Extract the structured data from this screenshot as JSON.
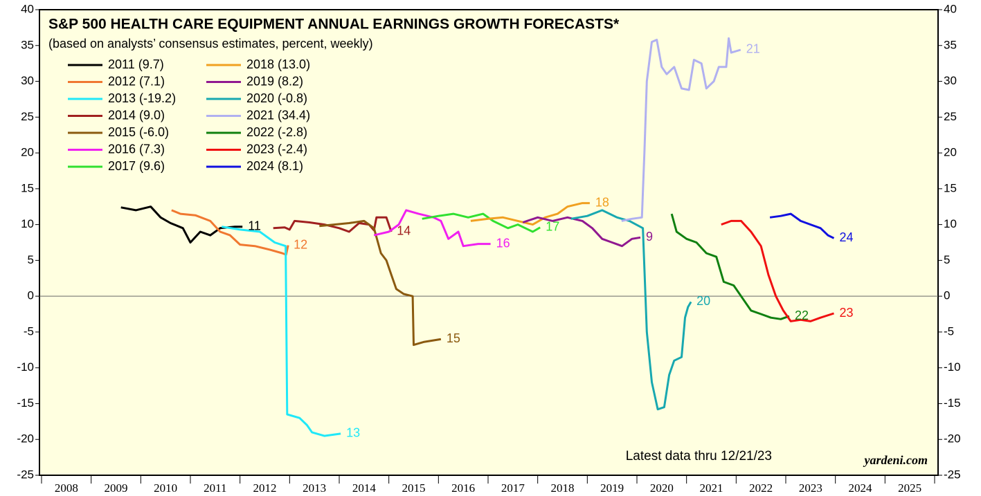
{
  "chart_data": {
    "type": "line",
    "title": "S&P 500 HEALTH CARE EQUIPMENT ANNUAL EARNINGS GROWTH FORECASTS*",
    "subtitle": "(based on analysts’ consensus estimates, percent, weekly)",
    "note": "Latest data thru 12/21/23",
    "source": "yardeni.com",
    "background": "#ffffe0",
    "xlim": [
      2008,
      2026
    ],
    "xticks": [
      2008,
      2009,
      2010,
      2011,
      2012,
      2013,
      2014,
      2015,
      2016,
      2017,
      2018,
      2019,
      2020,
      2021,
      2022,
      2023,
      2024,
      2025,
      2026
    ],
    "year_labels": [
      "2008",
      "2009",
      "2010",
      "2011",
      "2012",
      "2013",
      "2014",
      "2015",
      "2016",
      "2017",
      "2018",
      "2019",
      "2020",
      "2021",
      "2022",
      "2023",
      "2024",
      "2025"
    ],
    "ylim": [
      -25,
      40
    ],
    "yticks": [
      -25,
      -20,
      -15,
      -10,
      -5,
      0,
      5,
      10,
      15,
      20,
      25,
      30,
      35,
      40
    ],
    "series": [
      {
        "name": "2011 (9.7)",
        "end_label": "11",
        "color": "#000000",
        "x": [
          2009.6,
          2009.9,
          2010.2,
          2010.4,
          2010.6,
          2010.85,
          2011.0,
          2011.2,
          2011.4,
          2011.6,
          2011.9,
          2012.05
        ],
        "values": [
          12.4,
          12.0,
          12.5,
          11.0,
          10.2,
          9.5,
          7.5,
          9.0,
          8.5,
          9.5,
          9.7,
          9.7
        ]
      },
      {
        "name": "2012 (7.1)",
        "end_label": "12",
        "color": "#f07830",
        "x": [
          2010.62,
          2010.8,
          2011.1,
          2011.4,
          2011.6,
          2011.8,
          2012.0,
          2012.3,
          2012.6,
          2012.85,
          2012.93,
          2012.97
        ],
        "values": [
          12.0,
          11.5,
          11.3,
          10.5,
          9.0,
          8.5,
          7.2,
          7.0,
          6.5,
          6.0,
          5.8,
          7.1
        ]
      },
      {
        "name": "2013 (-19.2)",
        "end_label": "13",
        "color": "#20e8f8",
        "x": [
          2011.63,
          2012.0,
          2012.4,
          2012.7,
          2012.92,
          2012.95,
          2013.2,
          2013.35,
          2013.45,
          2013.7,
          2014.03
        ],
        "values": [
          9.7,
          9.3,
          9.0,
          7.5,
          7.0,
          -16.5,
          -17.0,
          -18.0,
          -19.0,
          -19.5,
          -19.2
        ]
      },
      {
        "name": "2014 (9.0)",
        "end_label": "14",
        "color": "#a02020",
        "x": [
          2012.67,
          2012.9,
          2013.0,
          2013.1,
          2013.4,
          2013.7,
          2014.0,
          2014.2,
          2014.4,
          2014.6,
          2014.7,
          2014.75,
          2014.95,
          2015.05
        ],
        "values": [
          9.5,
          9.6,
          9.3,
          10.5,
          10.3,
          10.0,
          9.5,
          9.0,
          10.2,
          10.0,
          9.2,
          11.0,
          11.0,
          9.0
        ]
      },
      {
        "name": "2015 (-6.0)",
        "end_label": "15",
        "color": "#8b5a10",
        "x": [
          2013.6,
          2013.9,
          2014.2,
          2014.5,
          2014.7,
          2014.84,
          2014.95,
          2015.05,
          2015.15,
          2015.3,
          2015.48,
          2015.5,
          2015.7,
          2016.05
        ],
        "values": [
          9.8,
          10.0,
          10.2,
          10.5,
          9.5,
          6.0,
          5.0,
          3.0,
          1.0,
          0.3,
          0.0,
          -6.8,
          -6.4,
          -6.0
        ]
      },
      {
        "name": "2016 (7.3)",
        "end_label": "16",
        "color": "#f020f0",
        "x": [
          2014.7,
          2015.0,
          2015.2,
          2015.35,
          2015.6,
          2015.9,
          2016.05,
          2016.2,
          2016.4,
          2016.5,
          2016.8,
          2017.05
        ],
        "values": [
          8.5,
          9.0,
          10.0,
          12.0,
          11.5,
          11.0,
          10.5,
          8.0,
          9.0,
          7.0,
          7.3,
          7.3
        ]
      },
      {
        "name": "2017 (9.6)",
        "end_label": "17",
        "color": "#30e030",
        "x": [
          2015.67,
          2016.0,
          2016.3,
          2016.6,
          2016.9,
          2017.1,
          2017.4,
          2017.6,
          2017.9,
          2018.05
        ],
        "values": [
          10.8,
          11.2,
          11.5,
          11.0,
          11.5,
          10.5,
          9.5,
          10.0,
          9.0,
          9.6
        ]
      },
      {
        "name": "2018 (13.0)",
        "end_label": "18",
        "color": "#f0a020",
        "x": [
          2016.65,
          2017.0,
          2017.3,
          2017.6,
          2017.9,
          2018.15,
          2018.4,
          2018.6,
          2018.9,
          2019.05
        ],
        "values": [
          10.5,
          10.8,
          11.0,
          10.5,
          10.0,
          11.0,
          11.5,
          12.5,
          13.0,
          13.0
        ]
      },
      {
        "name": "2019 (8.2)",
        "end_label": "9",
        "color": "#901890",
        "x": [
          2017.7,
          2018.0,
          2018.3,
          2018.6,
          2018.9,
          2019.1,
          2019.3,
          2019.5,
          2019.7,
          2019.9,
          2020.07
        ],
        "values": [
          10.3,
          11.0,
          10.5,
          11.0,
          10.5,
          9.5,
          8.0,
          7.5,
          7.0,
          8.0,
          8.2
        ]
      },
      {
        "name": "2020 (-0.8)",
        "end_label": "20",
        "color": "#18a8b0",
        "x": [
          2018.67,
          2019.0,
          2019.3,
          2019.6,
          2019.85,
          2020.12,
          2020.2,
          2020.3,
          2020.42,
          2020.55,
          2020.65,
          2020.75,
          2020.9,
          2020.97,
          2021.03,
          2021.09
        ],
        "values": [
          10.8,
          11.2,
          12.0,
          11.0,
          10.5,
          9.5,
          -5,
          -12,
          -15.8,
          -15.5,
          -11,
          -9,
          -8.5,
          -3,
          -1.5,
          -0.8
        ]
      },
      {
        "name": "2021 (34.4)",
        "end_label": "21",
        "color": "#b0b0f0",
        "x": [
          2019.69,
          2019.9,
          2020.1,
          2020.15,
          2020.2,
          2020.3,
          2020.4,
          2020.5,
          2020.6,
          2020.75,
          2020.9,
          2021.05,
          2021.15,
          2021.3,
          2021.4,
          2021.55,
          2021.65,
          2021.8,
          2021.85,
          2021.9,
          2022.09
        ],
        "values": [
          10.5,
          10.8,
          11.0,
          20,
          30,
          35.5,
          35.8,
          32,
          31,
          32,
          29,
          28.8,
          33,
          32.5,
          29,
          30,
          32,
          32,
          36,
          34,
          34.4
        ]
      },
      {
        "name": "2022 (-2.8)",
        "end_label": "22",
        "color": "#108010",
        "x": [
          2020.7,
          2020.8,
          2021.0,
          2021.2,
          2021.4,
          2021.6,
          2021.75,
          2021.95,
          2022.1,
          2022.3,
          2022.5,
          2022.7,
          2022.9,
          2023.07
        ],
        "values": [
          11.5,
          9.0,
          8.0,
          7.5,
          6.0,
          5.5,
          2.0,
          1.5,
          0.0,
          -2.0,
          -2.5,
          -3.0,
          -3.2,
          -2.8
        ]
      },
      {
        "name": "2023 (-2.4)",
        "end_label": "23",
        "color": "#f01010",
        "x": [
          2021.7,
          2021.9,
          2022.1,
          2022.3,
          2022.5,
          2022.65,
          2022.8,
          2022.95,
          2023.1,
          2023.3,
          2023.5,
          2023.7,
          2023.97
        ],
        "values": [
          10.0,
          10.5,
          10.5,
          9.0,
          7.0,
          3.0,
          0.0,
          -2.0,
          -3.5,
          -3.3,
          -3.5,
          -3.0,
          -2.4
        ]
      },
      {
        "name": "2024 (8.1)",
        "end_label": "24",
        "color": "#1010e0",
        "x": [
          2022.68,
          2022.9,
          2023.1,
          2023.3,
          2023.5,
          2023.7,
          2023.85,
          2023.97
        ],
        "values": [
          11.0,
          11.2,
          11.5,
          10.5,
          10.0,
          9.5,
          8.5,
          8.1
        ]
      }
    ]
  }
}
